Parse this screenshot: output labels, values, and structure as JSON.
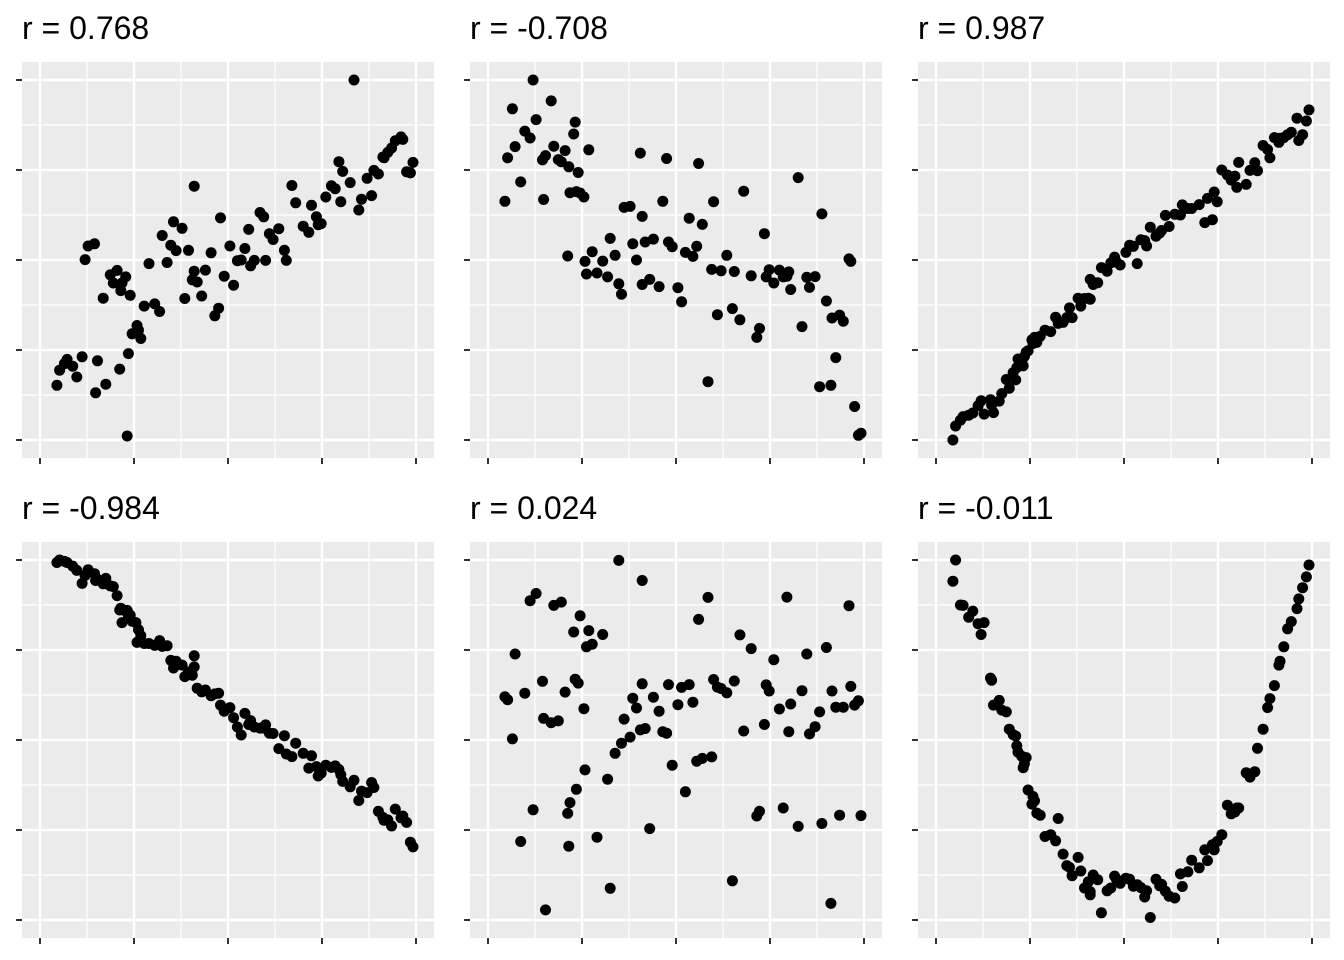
{
  "chart_data": [
    {
      "type": "scatter",
      "title": "r =  0.768",
      "x": [
        0.045,
        0.052,
        0.065,
        0.072,
        0.087,
        0.098,
        0.112,
        0.12,
        0.128,
        0.145,
        0.148,
        0.153,
        0.168,
        0.175,
        0.187,
        0.195,
        0.205,
        0.212,
        0.215,
        0.218,
        0.228,
        0.232,
        0.235,
        0.24,
        0.245,
        0.255,
        0.258,
        0.262,
        0.268,
        0.277,
        0.29,
        0.305,
        0.318,
        0.325,
        0.338,
        0.348,
        0.355,
        0.362,
        0.378,
        0.385,
        0.395,
        0.405,
        0.41,
        0.41,
        0.418,
        0.43,
        0.44,
        0.455,
        0.465,
        0.475,
        0.48,
        0.49,
        0.505,
        0.515,
        0.525,
        0.535,
        0.545,
        0.555,
        0.56,
        0.57,
        0.585,
        0.595,
        0.6,
        0.61,
        0.62,
        0.635,
        0.65,
        0.655,
        0.67,
        0.68,
        0.7,
        0.715,
        0.722,
        0.735,
        0.74,
        0.748,
        0.76,
        0.775,
        0.785,
        0.795,
        0.8,
        0.805,
        0.825,
        0.835,
        0.848,
        0.855,
        0.87,
        0.882,
        0.888,
        0.9,
        0.912,
        0.915,
        0.925,
        0.935,
        0.945,
        0.96,
        0.965,
        0.975,
        0.985,
        0.992
      ],
      "y": [
        0.152,
        0.194,
        0.212,
        0.224,
        0.205,
        0.175,
        0.231,
        0.501,
        0.539,
        0.545,
        0.131,
        0.22,
        0.394,
        0.155,
        0.459,
        0.436,
        0.471,
        0.197,
        0.415,
        0.436,
        0.453,
        0.011,
        0.24,
        0.402,
        0.295,
        0.299,
        0.318,
        0.305,
        0.282,
        0.372,
        0.49,
        0.378,
        0.357,
        0.568,
        0.493,
        0.541,
        0.606,
        0.526,
        0.588,
        0.393,
        0.527,
        0.445,
        0.705,
        0.469,
        0.439,
        0.4,
        0.472,
        0.52,
        0.345,
        0.366,
        0.617,
        0.455,
        0.539,
        0.43,
        0.498,
        0.5,
        0.532,
        0.585,
        0.484,
        0.499,
        0.632,
        0.62,
        0.499,
        0.573,
        0.557,
        0.587,
        0.527,
        0.499,
        0.707,
        0.659,
        0.594,
        0.577,
        0.652,
        0.62,
        0.598,
        0.601,
        0.675,
        0.706,
        0.698,
        0.773,
        0.662,
        0.746,
        0.715,
        1.0,
        0.639,
        0.669,
        0.727,
        0.679,
        0.749,
        0.739,
        0.786,
        0.784,
        0.799,
        0.811,
        0.831,
        0.842,
        0.835,
        0.745,
        0.742,
        0.771
      ],
      "xlim": [
        0,
        1
      ],
      "ylim": [
        0,
        1
      ],
      "grid": true,
      "legend": "none"
    },
    {
      "type": "scatter",
      "title": "r =  -0.708",
      "x": [
        0.045,
        0.052,
        0.065,
        0.072,
        0.087,
        0.098,
        0.112,
        0.12,
        0.128,
        0.145,
        0.148,
        0.153,
        0.168,
        0.175,
        0.187,
        0.195,
        0.205,
        0.212,
        0.215,
        0.218,
        0.228,
        0.232,
        0.235,
        0.24,
        0.245,
        0.255,
        0.258,
        0.262,
        0.268,
        0.277,
        0.29,
        0.305,
        0.318,
        0.325,
        0.338,
        0.348,
        0.355,
        0.362,
        0.378,
        0.385,
        0.395,
        0.405,
        0.41,
        0.41,
        0.418,
        0.43,
        0.44,
        0.455,
        0.465,
        0.475,
        0.48,
        0.49,
        0.505,
        0.515,
        0.525,
        0.535,
        0.545,
        0.555,
        0.56,
        0.57,
        0.585,
        0.595,
        0.6,
        0.61,
        0.62,
        0.635,
        0.65,
        0.655,
        0.67,
        0.68,
        0.7,
        0.715,
        0.722,
        0.735,
        0.74,
        0.748,
        0.76,
        0.775,
        0.785,
        0.795,
        0.8,
        0.805,
        0.825,
        0.835,
        0.848,
        0.855,
        0.87,
        0.882,
        0.888,
        0.9,
        0.912,
        0.915,
        0.925,
        0.935,
        0.945,
        0.96,
        0.965,
        0.975,
        0.985,
        0.992
      ],
      "y": [
        0.663,
        0.784,
        0.92,
        0.815,
        0.717,
        0.858,
        0.839,
        1.0,
        0.89,
        0.778,
        0.668,
        0.79,
        0.942,
        0.816,
        0.779,
        0.773,
        0.804,
        0.511,
        0.759,
        0.687,
        0.85,
        0.883,
        0.69,
        0.743,
        0.686,
        0.675,
        0.496,
        0.461,
        0.806,
        0.523,
        0.464,
        0.497,
        0.453,
        0.56,
        0.513,
        0.434,
        0.405,
        0.646,
        0.649,
        0.545,
        0.5,
        0.797,
        0.621,
        0.432,
        0.55,
        0.446,
        0.558,
        0.426,
        0.663,
        0.782,
        0.55,
        0.537,
        0.423,
        0.384,
        0.521,
        0.616,
        0.51,
        0.538,
        0.768,
        0.599,
        0.162,
        0.474,
        0.662,
        0.348,
        0.47,
        0.513,
        0.365,
        0.468,
        0.334,
        0.691,
        0.456,
        0.285,
        0.31,
        0.573,
        0.453,
        0.473,
        0.436,
        0.472,
        0.453,
        0.455,
        0.467,
        0.418,
        0.729,
        0.315,
        0.452,
        0.424,
        0.454,
        0.148,
        0.628,
        0.386,
        0.152,
        0.339,
        0.229,
        0.347,
        0.33,
        0.503,
        0.496,
        0.093,
        0.013,
        0.019
      ],
      "xlim": [
        0,
        1
      ],
      "ylim": [
        0,
        1
      ],
      "grid": true,
      "legend": "none"
    },
    {
      "type": "scatter",
      "title": "r =  0.987",
      "x": [
        0.045,
        0.052,
        0.065,
        0.072,
        0.087,
        0.098,
        0.112,
        0.12,
        0.128,
        0.145,
        0.148,
        0.153,
        0.168,
        0.175,
        0.187,
        0.195,
        0.205,
        0.212,
        0.215,
        0.218,
        0.228,
        0.232,
        0.235,
        0.24,
        0.245,
        0.255,
        0.258,
        0.262,
        0.268,
        0.277,
        0.29,
        0.305,
        0.318,
        0.325,
        0.338,
        0.348,
        0.355,
        0.362,
        0.378,
        0.385,
        0.395,
        0.405,
        0.41,
        0.41,
        0.418,
        0.43,
        0.44,
        0.455,
        0.465,
        0.475,
        0.48,
        0.49,
        0.505,
        0.515,
        0.525,
        0.535,
        0.545,
        0.555,
        0.56,
        0.57,
        0.585,
        0.595,
        0.6,
        0.61,
        0.62,
        0.635,
        0.65,
        0.655,
        0.67,
        0.68,
        0.7,
        0.715,
        0.722,
        0.735,
        0.74,
        0.748,
        0.76,
        0.775,
        0.785,
        0.795,
        0.8,
        0.805,
        0.825,
        0.835,
        0.848,
        0.855,
        0.87,
        0.882,
        0.888,
        0.9,
        0.912,
        0.915,
        0.925,
        0.935,
        0.945,
        0.96,
        0.965,
        0.975,
        0.985,
        0.992
      ],
      "y": [
        0.0,
        0.039,
        0.055,
        0.065,
        0.069,
        0.075,
        0.095,
        0.109,
        0.072,
        0.112,
        0.097,
        0.076,
        0.108,
        0.129,
        0.168,
        0.144,
        0.187,
        0.167,
        0.201,
        0.225,
        0.217,
        0.206,
        0.232,
        0.244,
        0.248,
        0.278,
        0.268,
        0.285,
        0.271,
        0.288,
        0.305,
        0.301,
        0.341,
        0.324,
        0.327,
        0.34,
        0.367,
        0.34,
        0.394,
        0.372,
        0.393,
        0.394,
        0.391,
        0.446,
        0.432,
        0.437,
        0.479,
        0.469,
        0.492,
        0.508,
        0.494,
        0.486,
        0.521,
        0.541,
        0.538,
        0.49,
        0.556,
        0.554,
        0.539,
        0.591,
        0.566,
        0.575,
        0.582,
        0.624,
        0.593,
        0.627,
        0.625,
        0.653,
        0.643,
        0.643,
        0.654,
        0.604,
        0.671,
        0.612,
        0.689,
        0.662,
        0.75,
        0.736,
        0.722,
        0.733,
        0.702,
        0.771,
        0.71,
        0.749,
        0.77,
        0.748,
        0.818,
        0.807,
        0.784,
        0.84,
        0.827,
        0.838,
        0.84,
        0.848,
        0.855,
        0.894,
        0.832,
        0.848,
        0.886,
        0.917
      ],
      "xlim": [
        0,
        1
      ],
      "ylim": [
        0,
        1
      ],
      "grid": true,
      "legend": "none"
    },
    {
      "type": "scatter",
      "title": "r =  -0.984",
      "x": [
        0.045,
        0.052,
        0.065,
        0.072,
        0.087,
        0.098,
        0.112,
        0.12,
        0.128,
        0.145,
        0.148,
        0.153,
        0.168,
        0.175,
        0.187,
        0.195,
        0.205,
        0.212,
        0.215,
        0.218,
        0.228,
        0.232,
        0.235,
        0.24,
        0.245,
        0.255,
        0.258,
        0.262,
        0.268,
        0.277,
        0.29,
        0.305,
        0.318,
        0.325,
        0.338,
        0.348,
        0.355,
        0.362,
        0.378,
        0.385,
        0.395,
        0.405,
        0.41,
        0.41,
        0.418,
        0.43,
        0.44,
        0.455,
        0.465,
        0.475,
        0.48,
        0.49,
        0.505,
        0.515,
        0.525,
        0.535,
        0.545,
        0.555,
        0.56,
        0.57,
        0.585,
        0.595,
        0.6,
        0.61,
        0.62,
        0.635,
        0.65,
        0.655,
        0.67,
        0.68,
        0.7,
        0.715,
        0.722,
        0.735,
        0.74,
        0.748,
        0.76,
        0.775,
        0.785,
        0.795,
        0.8,
        0.805,
        0.825,
        0.835,
        0.848,
        0.855,
        0.87,
        0.882,
        0.888,
        0.9,
        0.912,
        0.915,
        0.925,
        0.935,
        0.945,
        0.96,
        0.965,
        0.975,
        0.985,
        0.992
      ],
      "y": [
        0.993,
        1.0,
        0.996,
        0.993,
        0.983,
        0.971,
        0.935,
        0.957,
        0.973,
        0.962,
        0.943,
        0.946,
        0.934,
        0.949,
        0.928,
        0.926,
        0.901,
        0.861,
        0.866,
        0.826,
        0.858,
        0.86,
        0.84,
        0.847,
        0.83,
        0.826,
        0.771,
        0.806,
        0.79,
        0.768,
        0.768,
        0.763,
        0.776,
        0.76,
        0.762,
        0.721,
        0.7,
        0.719,
        0.708,
        0.676,
        0.689,
        0.68,
        0.734,
        0.703,
        0.644,
        0.634,
        0.639,
        0.623,
        0.628,
        0.63,
        0.597,
        0.58,
        0.59,
        0.562,
        0.536,
        0.514,
        0.574,
        0.543,
        0.554,
        0.536,
        0.533,
        0.533,
        0.542,
        0.519,
        0.518,
        0.476,
        0.512,
        0.461,
        0.454,
        0.491,
        0.463,
        0.422,
        0.456,
        0.426,
        0.4,
        0.408,
        0.43,
        0.424,
        0.428,
        0.418,
        0.404,
        0.385,
        0.37,
        0.388,
        0.332,
        0.358,
        0.354,
        0.382,
        0.368,
        0.302,
        0.285,
        0.277,
        0.278,
        0.261,
        0.308,
        0.284,
        0.289,
        0.271,
        0.216,
        0.203
      ],
      "xlim": [
        0,
        1
      ],
      "ylim": [
        0,
        1
      ],
      "grid": true,
      "legend": "none"
    },
    {
      "type": "scatter",
      "title": "r =  0.024",
      "x": [
        0.045,
        0.052,
        0.065,
        0.072,
        0.087,
        0.098,
        0.112,
        0.12,
        0.128,
        0.145,
        0.148,
        0.153,
        0.168,
        0.175,
        0.187,
        0.195,
        0.205,
        0.212,
        0.215,
        0.218,
        0.228,
        0.232,
        0.235,
        0.24,
        0.245,
        0.255,
        0.258,
        0.262,
        0.268,
        0.277,
        0.29,
        0.305,
        0.318,
        0.325,
        0.338,
        0.348,
        0.355,
        0.362,
        0.378,
        0.385,
        0.395,
        0.405,
        0.41,
        0.41,
        0.418,
        0.43,
        0.44,
        0.455,
        0.465,
        0.475,
        0.48,
        0.49,
        0.505,
        0.515,
        0.525,
        0.535,
        0.545,
        0.555,
        0.56,
        0.57,
        0.585,
        0.595,
        0.6,
        0.61,
        0.62,
        0.635,
        0.65,
        0.655,
        0.67,
        0.68,
        0.7,
        0.715,
        0.722,
        0.735,
        0.74,
        0.748,
        0.76,
        0.775,
        0.785,
        0.795,
        0.8,
        0.805,
        0.825,
        0.835,
        0.848,
        0.855,
        0.87,
        0.882,
        0.888,
        0.9,
        0.912,
        0.915,
        0.925,
        0.935,
        0.945,
        0.96,
        0.965,
        0.975,
        0.985,
        0.992
      ],
      "y": [
        0.62,
        0.612,
        0.503,
        0.739,
        0.218,
        0.63,
        0.887,
        0.306,
        0.907,
        0.663,
        0.56,
        0.028,
        0.548,
        0.874,
        0.553,
        0.883,
        0.633,
        0.296,
        0.205,
        0.326,
        0.8,
        0.669,
        0.363,
        0.658,
        0.845,
        0.587,
        0.417,
        0.759,
        0.804,
        0.766,
        0.23,
        0.793,
        0.391,
        0.088,
        0.463,
        0.999,
        0.491,
        0.558,
        0.508,
        0.616,
        0.589,
        0.528,
        0.656,
        0.943,
        0.532,
        0.254,
        0.619,
        0.58,
        0.523,
        0.519,
        0.654,
        0.43,
        0.598,
        0.646,
        0.356,
        0.654,
        0.605,
        0.441,
        0.835,
        0.449,
        0.896,
        0.453,
        0.668,
        0.647,
        0.643,
        0.631,
        0.109,
        0.664,
        0.792,
        0.525,
        0.754,
        0.289,
        0.302,
        0.543,
        0.653,
        0.636,
        0.723,
        0.586,
        0.311,
        0.897,
        0.523,
        0.6,
        0.26,
        0.637,
        0.739,
        0.517,
        0.537,
        0.578,
        0.268,
        0.757,
        0.046,
        0.636,
        0.591,
        0.291,
        0.591,
        0.873,
        0.649,
        0.597,
        0.609,
        0.29
      ],
      "xlim": [
        0,
        1
      ],
      "ylim": [
        0,
        1
      ],
      "grid": true,
      "legend": "none"
    },
    {
      "type": "scatter",
      "title": "r =  -0.011",
      "x": [
        0.045,
        0.052,
        0.065,
        0.072,
        0.087,
        0.098,
        0.112,
        0.12,
        0.128,
        0.145,
        0.148,
        0.153,
        0.168,
        0.175,
        0.187,
        0.195,
        0.205,
        0.212,
        0.215,
        0.218,
        0.228,
        0.232,
        0.235,
        0.24,
        0.245,
        0.255,
        0.258,
        0.262,
        0.268,
        0.277,
        0.29,
        0.305,
        0.318,
        0.325,
        0.338,
        0.348,
        0.355,
        0.362,
        0.378,
        0.385,
        0.395,
        0.405,
        0.41,
        0.41,
        0.418,
        0.43,
        0.44,
        0.455,
        0.465,
        0.475,
        0.48,
        0.49,
        0.505,
        0.515,
        0.525,
        0.535,
        0.545,
        0.555,
        0.56,
        0.57,
        0.585,
        0.595,
        0.6,
        0.61,
        0.62,
        0.635,
        0.65,
        0.655,
        0.67,
        0.68,
        0.7,
        0.715,
        0.722,
        0.735,
        0.74,
        0.748,
        0.76,
        0.775,
        0.785,
        0.795,
        0.8,
        0.805,
        0.825,
        0.835,
        0.848,
        0.855,
        0.87,
        0.882,
        0.888,
        0.9,
        0.912,
        0.915,
        0.925,
        0.935,
        0.945,
        0.96,
        0.965,
        0.975,
        0.985,
        0.992
      ],
      "y": [
        0.941,
        1.0,
        0.875,
        0.874,
        0.841,
        0.858,
        0.823,
        0.793,
        0.826,
        0.672,
        0.666,
        0.597,
        0.61,
        0.583,
        0.578,
        0.53,
        0.515,
        0.511,
        0.484,
        0.466,
        0.455,
        0.423,
        0.434,
        0.451,
        0.361,
        0.322,
        0.343,
        0.331,
        0.297,
        0.291,
        0.232,
        0.237,
        0.22,
        0.282,
        0.183,
        0.151,
        0.146,
        0.123,
        0.174,
        0.136,
        0.089,
        0.106,
        0.07,
        0.079,
        0.125,
        0.112,
        0.02,
        0.081,
        0.089,
        0.122,
        0.113,
        0.102,
        0.116,
        0.113,
        0.094,
        0.098,
        0.09,
        0.064,
        0.081,
        0.007,
        0.113,
        0.095,
        0.099,
        0.08,
        0.066,
        0.061,
        0.128,
        0.093,
        0.134,
        0.166,
        0.145,
        0.195,
        0.165,
        0.209,
        0.195,
        0.218,
        0.237,
        0.319,
        0.295,
        0.3,
        0.311,
        0.311,
        0.409,
        0.397,
        0.412,
        0.477,
        0.53,
        0.59,
        0.615,
        0.651,
        0.708,
        0.719,
        0.759,
        0.809,
        0.829,
        0.865,
        0.892,
        0.923,
        0.953,
        0.986
      ],
      "xlim": [
        0,
        1
      ],
      "ylim": [
        0,
        1
      ],
      "grid": true,
      "legend": "none"
    }
  ]
}
